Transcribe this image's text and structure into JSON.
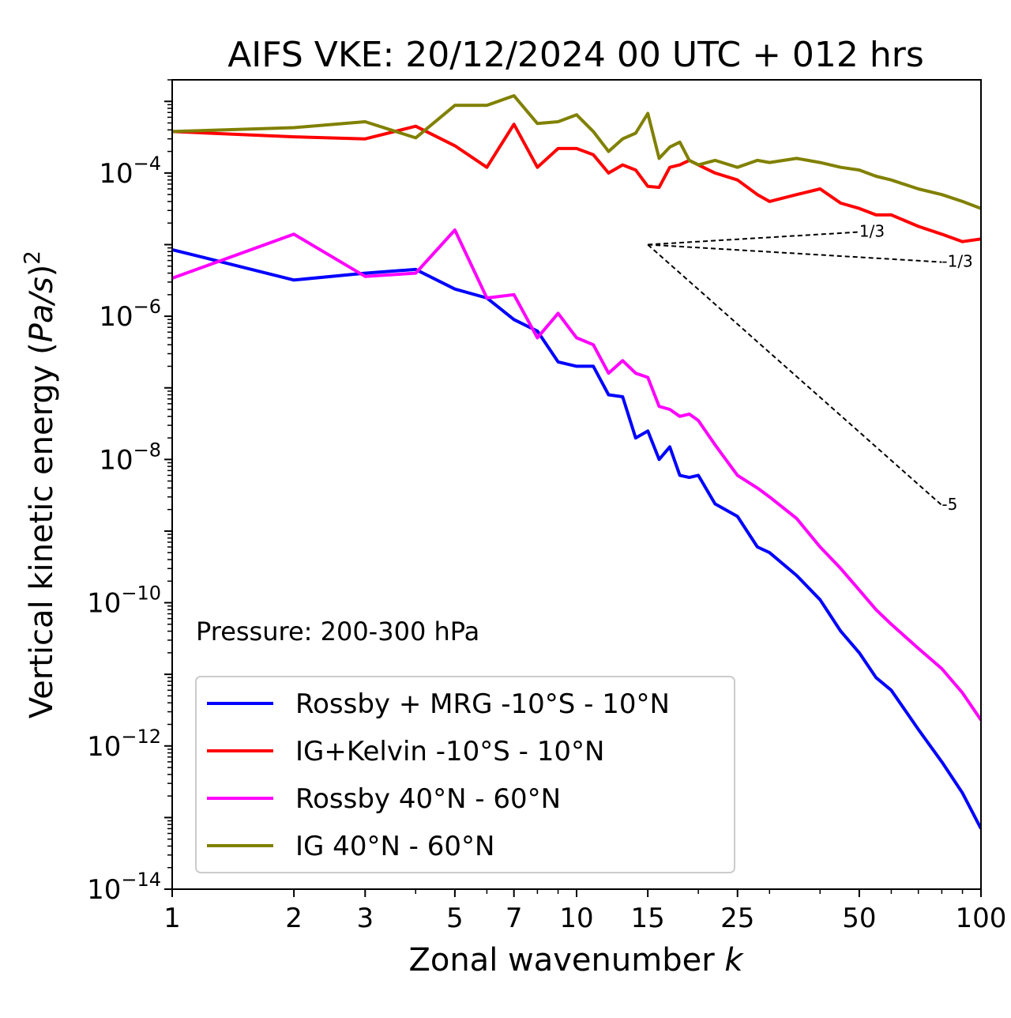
{
  "chart_data": {
    "type": "line",
    "title": "AIFS VKE: 20/12/2024 00 UTC + 012 hrs",
    "xlabel": "Zonal wavenumber k",
    "ylabel": "Vertical kinetic energy (Pa/s)²",
    "xscale": "log",
    "yscale": "log",
    "xlim": [
      1,
      100
    ],
    "ylim": [
      1e-14,
      0.002
    ],
    "grid": false,
    "legend_position": "lower-left",
    "annotation": "Pressure: 200-300 hPa",
    "x_ticks": [
      {
        "value": 1,
        "label": "1"
      },
      {
        "value": 2,
        "label": "2"
      },
      {
        "value": 3,
        "label": "3"
      },
      {
        "value": 5,
        "label": "5"
      },
      {
        "value": 7,
        "label": "7"
      },
      {
        "value": 10,
        "label": "10"
      },
      {
        "value": 15,
        "label": "15"
      },
      {
        "value": 25,
        "label": "25"
      },
      {
        "value": 50,
        "label": "50"
      },
      {
        "value": 100,
        "label": "100"
      }
    ],
    "y_ticks": [
      {
        "exp": -4,
        "base": "10",
        "sup": "−4"
      },
      {
        "exp": -6,
        "base": "10",
        "sup": "−6"
      },
      {
        "exp": -8,
        "base": "10",
        "sup": "−8"
      },
      {
        "exp": -10,
        "base": "10",
        "sup": "−10"
      },
      {
        "exp": -12,
        "base": "10",
        "sup": "−12"
      },
      {
        "exp": -14,
        "base": "10",
        "sup": "−14"
      }
    ],
    "reference_slopes": [
      {
        "label": "1/3",
        "x": [
          15,
          50
        ],
        "y": [
          1e-05,
          1.5e-05
        ]
      },
      {
        "label": "-1/3",
        "x": [
          15,
          80
        ],
        "y": [
          1e-05,
          5.7e-06
        ]
      },
      {
        "label": "-5",
        "x": [
          15,
          80
        ],
        "y": [
          1e-05,
          2.3e-09
        ]
      }
    ],
    "series": [
      {
        "name": "Rossby + MRG -10°S - 10°N",
        "color": "#0000ff",
        "x": [
          1,
          2,
          3,
          4,
          5,
          6,
          7,
          8,
          9,
          10,
          11,
          12,
          13,
          14,
          15,
          16,
          17,
          18,
          19,
          20,
          22,
          25,
          28,
          30,
          35,
          40,
          45,
          50,
          55,
          60,
          70,
          80,
          90,
          100
        ],
        "y": [
          8.5e-06,
          3.2e-06,
          4e-06,
          4.5e-06,
          2.4e-06,
          1.8e-06,
          9e-07,
          6.2e-07,
          2.3e-07,
          2e-07,
          2e-07,
          8e-08,
          7.5e-08,
          2e-08,
          2.5e-08,
          1e-08,
          1.5e-08,
          6e-09,
          5.6e-09,
          6e-09,
          2.4e-09,
          1.6e-09,
          6e-10,
          5e-10,
          2.4e-10,
          1.1e-10,
          4e-11,
          2e-11,
          9e-12,
          6e-12,
          1.7e-12,
          6e-13,
          2.2e-13,
          7e-14
        ]
      },
      {
        "name": "IG+Kelvin -10°S - 10°N",
        "color": "#ff0000",
        "x": [
          1,
          2,
          3,
          4,
          5,
          6,
          7,
          8,
          9,
          10,
          11,
          12,
          13,
          14,
          15,
          16,
          17,
          18,
          19,
          20,
          22,
          25,
          28,
          30,
          35,
          40,
          45,
          50,
          55,
          60,
          70,
          80,
          90,
          100
        ],
        "y": [
          0.00038,
          0.00032,
          0.0003,
          0.00045,
          0.00024,
          0.00012,
          0.00048,
          0.00012,
          0.00022,
          0.00022,
          0.00018,
          0.0001,
          0.00013,
          0.00011,
          6.5e-05,
          6.3e-05,
          0.00012,
          0.00013,
          0.00015,
          0.00013,
          0.0001,
          8e-05,
          5e-05,
          4e-05,
          5e-05,
          6e-05,
          3.8e-05,
          3.2e-05,
          2.6e-05,
          2.6e-05,
          1.8e-05,
          1.4e-05,
          1.1e-05,
          1.2e-05
        ]
      },
      {
        "name": "Rossby 40°N - 60°N",
        "color": "#ff00ff",
        "x": [
          1,
          2,
          3,
          4,
          5,
          6,
          7,
          8,
          9,
          10,
          11,
          12,
          13,
          14,
          15,
          16,
          17,
          18,
          19,
          20,
          22,
          25,
          28,
          30,
          35,
          40,
          45,
          50,
          55,
          60,
          70,
          80,
          90,
          100
        ],
        "y": [
          3.4e-06,
          1.4e-05,
          3.6e-06,
          4e-06,
          1.6e-05,
          1.8e-06,
          2e-06,
          5e-07,
          1.1e-06,
          5e-07,
          4e-07,
          1.6e-07,
          2.4e-07,
          1.6e-07,
          1.4e-07,
          5.5e-08,
          5e-08,
          4e-08,
          4.3e-08,
          3.5e-08,
          1.6e-08,
          6e-09,
          4e-09,
          3e-09,
          1.5e-09,
          6e-10,
          3e-10,
          1.5e-10,
          8e-11,
          5e-11,
          2.3e-11,
          1.2e-11,
          5.5e-12,
          2.3e-12
        ]
      },
      {
        "name": "IG 40°N - 60°N",
        "color": "#808000",
        "x": [
          1,
          2,
          3,
          4,
          5,
          6,
          7,
          8,
          9,
          10,
          11,
          12,
          13,
          14,
          15,
          16,
          17,
          18,
          19,
          20,
          22,
          25,
          28,
          30,
          35,
          40,
          45,
          50,
          55,
          60,
          70,
          80,
          90,
          100
        ],
        "y": [
          0.00038,
          0.00043,
          0.00052,
          0.00031,
          0.00088,
          0.00088,
          0.0012,
          0.00049,
          0.00052,
          0.00065,
          0.00038,
          0.0002,
          0.0003,
          0.00036,
          0.00068,
          0.00016,
          0.00023,
          0.00027,
          0.00015,
          0.00013,
          0.00015,
          0.00012,
          0.00015,
          0.00014,
          0.00016,
          0.00014,
          0.00012,
          0.00011,
          9e-05,
          8e-05,
          6e-05,
          5e-05,
          4e-05,
          3.2e-05
        ]
      }
    ]
  }
}
